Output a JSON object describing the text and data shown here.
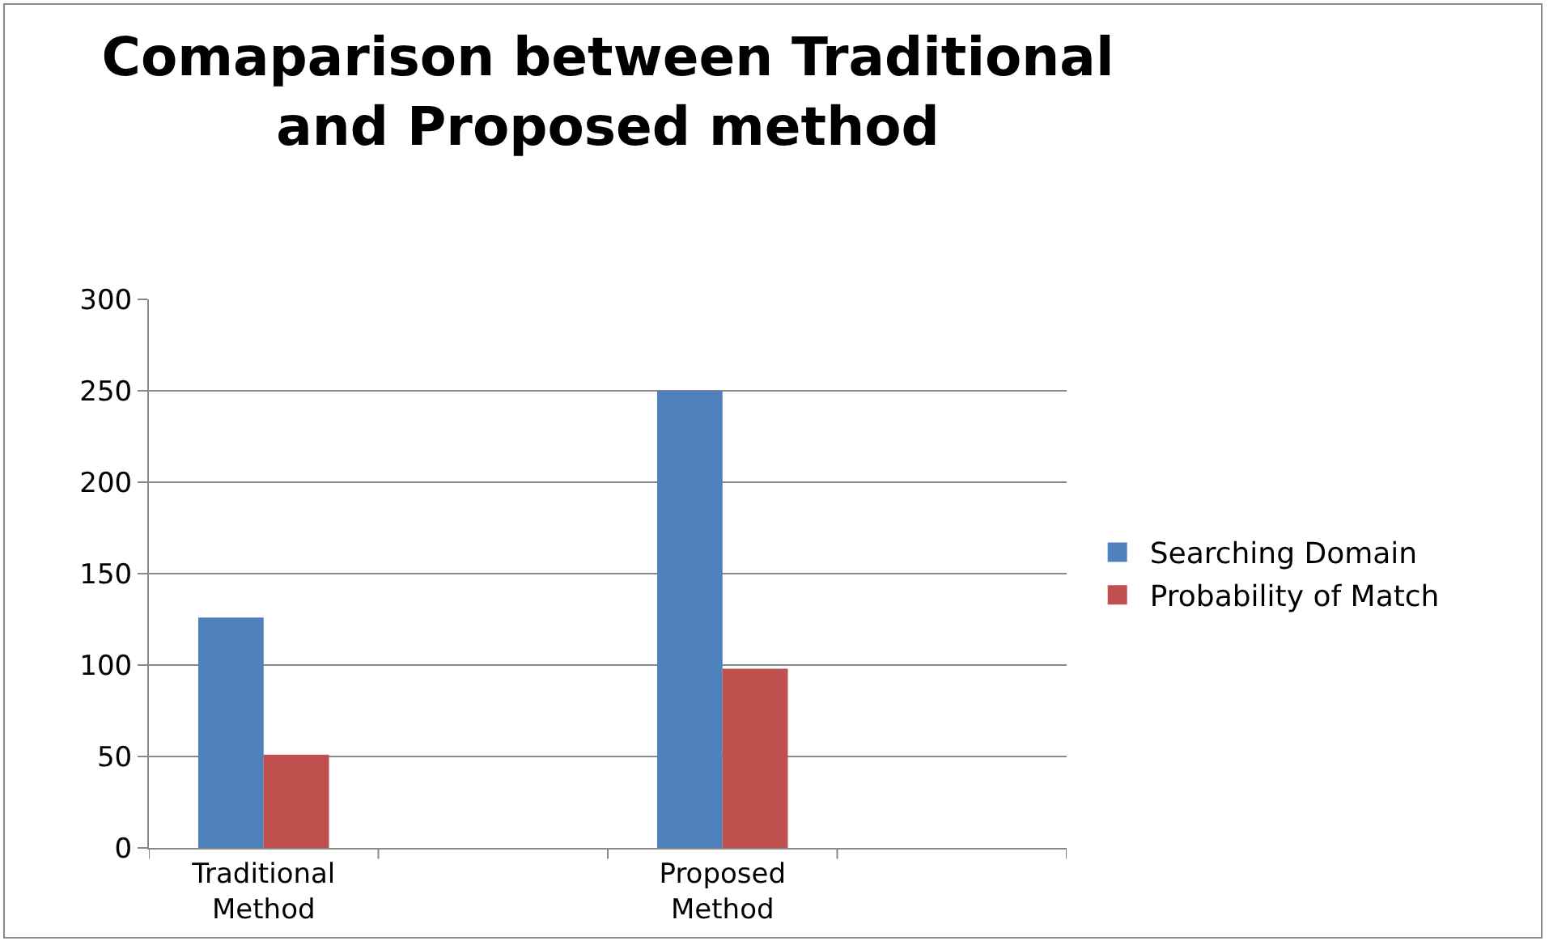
{
  "chart_data": {
    "type": "bar",
    "title": "Comaparison between Traditional and Proposed method",
    "categories": [
      "Traditional Method",
      null,
      "Proposed Method",
      null
    ],
    "series": [
      {
        "name": "Searching Domain",
        "color": "#4f81bd",
        "values": [
          126,
          null,
          250,
          null
        ]
      },
      {
        "name": "Probability of Match",
        "color": "#c0504d",
        "values": [
          51,
          null,
          98,
          null
        ]
      }
    ],
    "ylim": [
      0,
      300
    ],
    "yticks": [
      0,
      50,
      100,
      150,
      200,
      250,
      300
    ],
    "grid": "y",
    "legend": "right"
  }
}
